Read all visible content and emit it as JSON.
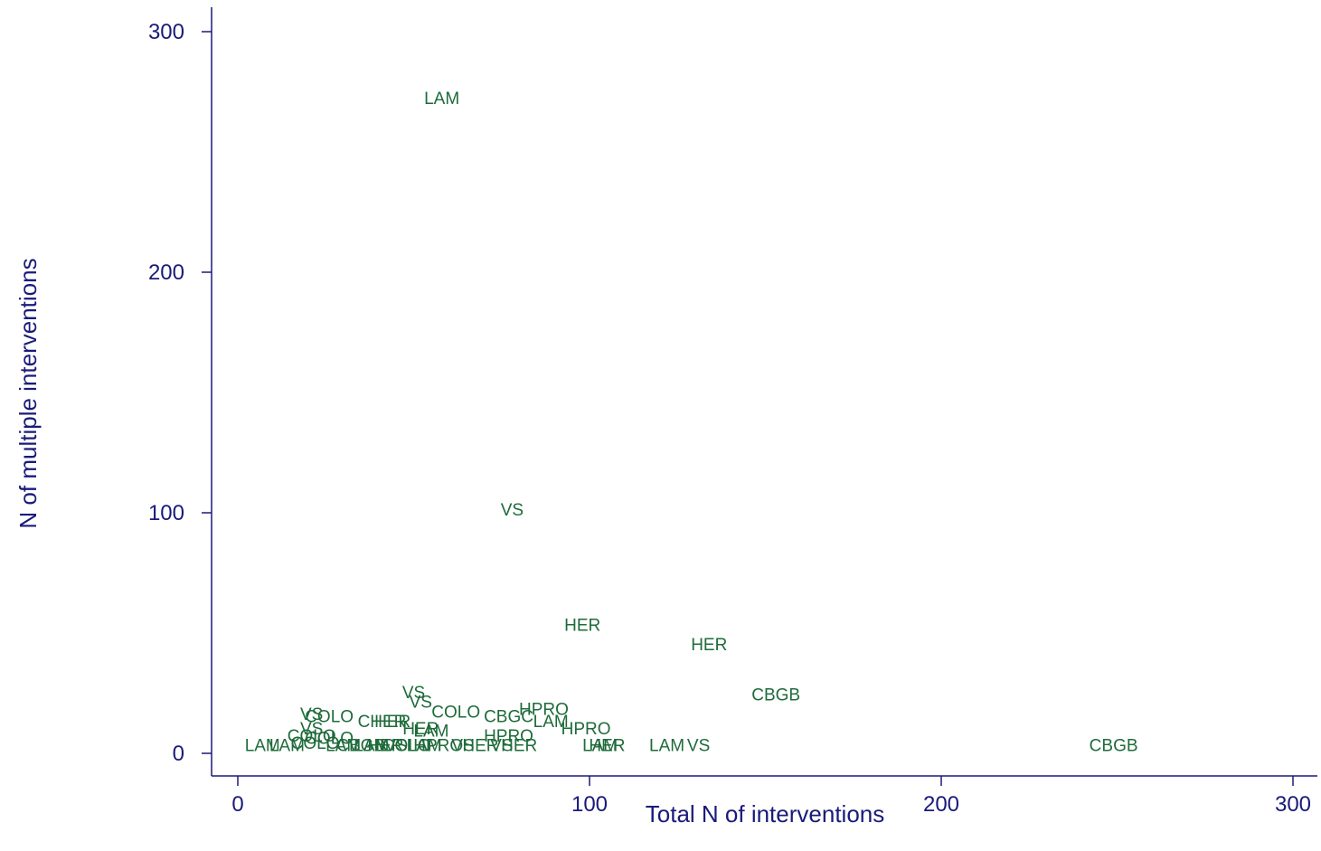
{
  "chart_data": {
    "type": "scatter",
    "title": "",
    "xlabel": "Total N of interventions",
    "ylabel": "N of multiple interventions",
    "xlim": [
      -7,
      308
    ],
    "ylim": [
      -8,
      311
    ],
    "xticks": [
      0,
      100,
      200,
      300
    ],
    "yticks": [
      0,
      100,
      200,
      300
    ],
    "grid": false,
    "marker": "text-label",
    "colors": {
      "axis": "#1a1a7a",
      "label": "#1e6b3a"
    },
    "points": [
      {
        "label": "LAM",
        "x": 58,
        "y": 272
      },
      {
        "label": "VS",
        "x": 78,
        "y": 101
      },
      {
        "label": "HER",
        "x": 98,
        "y": 53
      },
      {
        "label": "HER",
        "x": 134,
        "y": 45
      },
      {
        "label": "CBGB",
        "x": 153,
        "y": 24
      },
      {
        "label": "CBGB",
        "x": 249,
        "y": 3
      },
      {
        "label": "LAM",
        "x": 122,
        "y": 3
      },
      {
        "label": "VS",
        "x": 131,
        "y": 3
      },
      {
        "label": "LAM",
        "x": 103,
        "y": 3
      },
      {
        "label": "HER",
        "x": 105,
        "y": 3
      },
      {
        "label": "VS",
        "x": 50,
        "y": 25
      },
      {
        "label": "VS",
        "x": 52,
        "y": 21
      },
      {
        "label": "HPRO",
        "x": 87,
        "y": 18
      },
      {
        "label": "COLO",
        "x": 62,
        "y": 17
      },
      {
        "label": "CBGC",
        "x": 77,
        "y": 15
      },
      {
        "label": "LAM",
        "x": 89,
        "y": 13
      },
      {
        "label": "HPRO",
        "x": 99,
        "y": 10
      },
      {
        "label": "HPRO",
        "x": 77,
        "y": 7
      },
      {
        "label": "VS",
        "x": 21,
        "y": 16
      },
      {
        "label": "COLO",
        "x": 26,
        "y": 15
      },
      {
        "label": "CHER",
        "x": 41,
        "y": 13
      },
      {
        "label": "HER",
        "x": 44,
        "y": 13
      },
      {
        "label": "VS",
        "x": 21,
        "y": 10
      },
      {
        "label": "HER",
        "x": 52,
        "y": 10
      },
      {
        "label": "LAM",
        "x": 55,
        "y": 9
      },
      {
        "label": "COLO",
        "x": 21,
        "y": 7
      },
      {
        "label": "COLO",
        "x": 26,
        "y": 6
      },
      {
        "label": "LAM",
        "x": 7,
        "y": 3
      },
      {
        "label": "LAM",
        "x": 14,
        "y": 3
      },
      {
        "label": "COLO",
        "x": 22,
        "y": 4
      },
      {
        "label": "LAM",
        "x": 30,
        "y": 3
      },
      {
        "label": "CBGB",
        "x": 35,
        "y": 3
      },
      {
        "label": "LAM",
        "x": 38,
        "y": 3
      },
      {
        "label": "HER",
        "x": 42,
        "y": 3
      },
      {
        "label": "VS",
        "x": 45,
        "y": 3
      },
      {
        "label": "COLO",
        "x": 48,
        "y": 3
      },
      {
        "label": "LAM",
        "x": 53,
        "y": 3
      },
      {
        "label": "HPRO",
        "x": 57,
        "y": 3
      },
      {
        "label": "VS",
        "x": 64,
        "y": 3
      },
      {
        "label": "HER",
        "x": 69,
        "y": 3
      },
      {
        "label": "VS",
        "x": 75,
        "y": 3
      },
      {
        "label": "HER",
        "x": 80,
        "y": 3
      }
    ]
  }
}
